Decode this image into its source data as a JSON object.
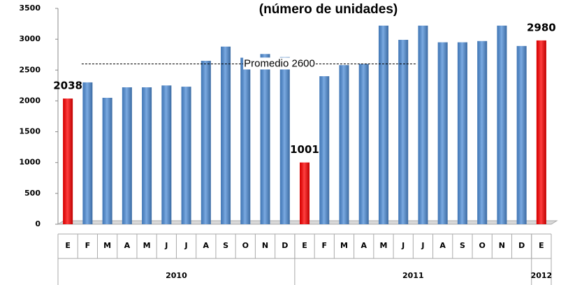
{
  "chart_data": {
    "type": "bar",
    "title": "(número de unidades)",
    "categories": [
      "E",
      "F",
      "M",
      "A",
      "M",
      "J",
      "J",
      "A",
      "S",
      "O",
      "N",
      "D",
      "E",
      "F",
      "M",
      "A",
      "M",
      "J",
      "J",
      "A",
      "S",
      "O",
      "N",
      "D",
      "E"
    ],
    "category_groups": [
      "2010",
      "2010",
      "2010",
      "2010",
      "2010",
      "2010",
      "2010",
      "2010",
      "2010",
      "2010",
      "2010",
      "2010",
      "2011",
      "2011",
      "2011",
      "2011",
      "2011",
      "2011",
      "2011",
      "2011",
      "2011",
      "2011",
      "2011",
      "2011",
      "2012"
    ],
    "values": [
      2038,
      2300,
      2050,
      2220,
      2220,
      2250,
      2230,
      2650,
      2880,
      2700,
      2760,
      2710,
      1001,
      2400,
      2580,
      2600,
      3220,
      2990,
      3220,
      2950,
      2950,
      2970,
      3220,
      2890,
      2980
    ],
    "value_labels": [
      "2038",
      null,
      null,
      null,
      null,
      null,
      null,
      null,
      null,
      null,
      null,
      null,
      "1001",
      null,
      null,
      null,
      null,
      null,
      null,
      null,
      null,
      null,
      null,
      null,
      "2980"
    ],
    "colors": [
      "#ff0000",
      "#4f8ed8",
      "#4f8ed8",
      "#4f8ed8",
      "#4f8ed8",
      "#4f8ed8",
      "#4f8ed8",
      "#4f8ed8",
      "#4f8ed8",
      "#4f8ed8",
      "#4f8ed8",
      "#4f8ed8",
      "#ff0000",
      "#4f8ed8",
      "#4f8ed8",
      "#4f8ed8",
      "#4f8ed8",
      "#4f8ed8",
      "#4f8ed8",
      "#4f8ed8",
      "#4f8ed8",
      "#4f8ed8",
      "#4f8ed8",
      "#4f8ed8",
      "#ff0000"
    ],
    "ylim": [
      0,
      3500
    ],
    "yticks": [
      0,
      500,
      1000,
      1500,
      2000,
      2500,
      3000,
      3500
    ],
    "grid": false,
    "reference_line": {
      "value": 2600,
      "label": "Promedio 2600"
    }
  }
}
